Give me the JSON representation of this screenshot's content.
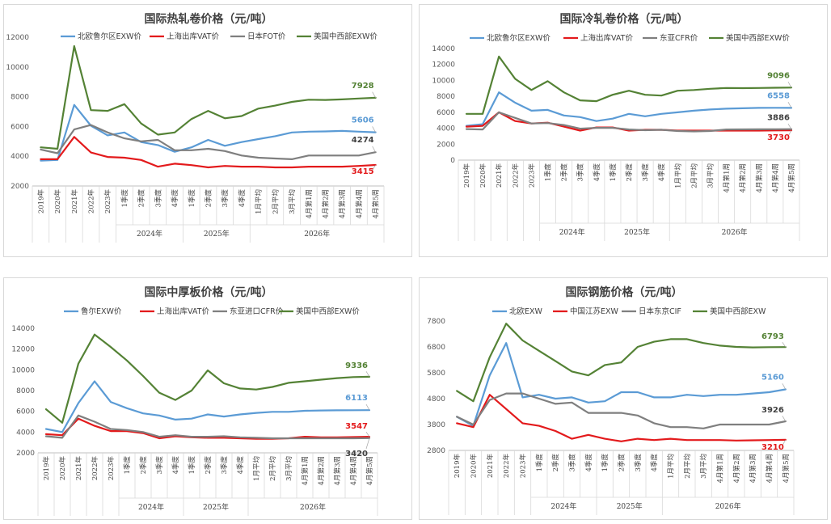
{
  "chart_data": [
    {
      "type": "line",
      "title": "国际热轧卷价格（元/吨）",
      "categories": [
        "2019年",
        "2020年",
        "2021年",
        "2022年",
        "2023年",
        "1季度",
        "2季度",
        "3季度",
        "4季度",
        "1季度",
        "2季度",
        "3季度",
        "4季度",
        "1月平均",
        "2月平均",
        "3月平均",
        "4月第1周",
        "4月第2周",
        "4月第3周",
        "4月第4周",
        "4月第5周"
      ],
      "year_groups": [
        {
          "label": "2024年",
          "from": 5,
          "to": 8
        },
        {
          "label": "2025年",
          "from": 9,
          "to": 12
        },
        {
          "label": "2026年",
          "from": 13,
          "to": 20
        }
      ],
      "ylim": [
        2000,
        12000
      ],
      "yticks": [
        2000,
        4000,
        6000,
        8000,
        10000,
        12000
      ],
      "gridlines": false,
      "legend_position": "top",
      "series": [
        {
          "name": "北欧鲁尔区EXW价",
          "color": "#5b9bd5",
          "end_label": "5606",
          "values": [
            3700,
            3750,
            7450,
            6050,
            5400,
            5600,
            4950,
            4750,
            4300,
            4600,
            5100,
            4700,
            4950,
            5150,
            5350,
            5600,
            5650,
            5670,
            5700,
            5650,
            5606
          ]
        },
        {
          "name": "上海出库VAT价",
          "color": "#e31a1c",
          "end_label": "3415",
          "values": [
            3800,
            3800,
            5300,
            4250,
            3950,
            3900,
            3750,
            3300,
            3500,
            3400,
            3250,
            3350,
            3300,
            3300,
            3250,
            3250,
            3300,
            3300,
            3300,
            3350,
            3415
          ]
        },
        {
          "name": "日本FOT价",
          "color": "#7f7f7f",
          "end_label": "4274",
          "values": [
            4450,
            4200,
            5800,
            6100,
            5600,
            5200,
            5000,
            5100,
            4400,
            4400,
            4500,
            4350,
            4050,
            3900,
            3850,
            3800,
            4050,
            4050,
            4050,
            4050,
            4274
          ]
        },
        {
          "name": "美国中西部EXW价",
          "color": "#548235",
          "end_label": "7928",
          "values": [
            4600,
            4500,
            11400,
            7100,
            7050,
            7500,
            6200,
            5450,
            5600,
            6500,
            7050,
            6550,
            6700,
            7200,
            7400,
            7650,
            7800,
            7780,
            7820,
            7880,
            7928
          ]
        }
      ]
    },
    {
      "type": "line",
      "title": "国际冷轧卷价格（元/吨）",
      "categories": [
        "2019年",
        "2020年",
        "2021年",
        "2022年",
        "2023年",
        "1季度",
        "2季度",
        "3季度",
        "4季度",
        "1季度",
        "2季度",
        "3季度",
        "4季度",
        "1月平均",
        "2月平均",
        "3月平均",
        "4月第1周",
        "4月第2周",
        "4月第3周",
        "4月第4周",
        "4月第5周"
      ],
      "year_groups": [
        {
          "label": "2024年",
          "from": 5,
          "to": 8
        },
        {
          "label": "2025年",
          "from": 9,
          "to": 12
        },
        {
          "label": "2026年",
          "from": 13,
          "to": 20
        }
      ],
      "ylim": [
        0,
        14000
      ],
      "yticks": [
        0,
        2000,
        4000,
        6000,
        8000,
        10000,
        12000,
        14000
      ],
      "gridlines": false,
      "legend_position": "top",
      "series": [
        {
          "name": "北欧鲁尔区EXW价",
          "color": "#5b9bd5",
          "end_label": "6558",
          "values": [
            4300,
            4500,
            8500,
            7200,
            6200,
            6300,
            5600,
            5400,
            4900,
            5200,
            5800,
            5500,
            5800,
            6000,
            6200,
            6350,
            6450,
            6500,
            6550,
            6560,
            6558
          ]
        },
        {
          "name": "上海出库VAT价",
          "color": "#e31a1c",
          "end_label": "3730",
          "values": [
            4200,
            4300,
            6000,
            4900,
            4600,
            4700,
            4200,
            3700,
            4100,
            4100,
            3700,
            3800,
            3800,
            3700,
            3700,
            3700,
            3700,
            3700,
            3700,
            3720,
            3730
          ]
        },
        {
          "name": "东亚CFR价",
          "color": "#7f7f7f",
          "end_label": "3886",
          "values": [
            3900,
            3850,
            6000,
            5300,
            4600,
            4650,
            4400,
            3950,
            4050,
            4050,
            3850,
            3750,
            3800,
            3650,
            3600,
            3650,
            3850,
            3860,
            3870,
            3880,
            3886
          ]
        },
        {
          "name": "美国中西部EXW价",
          "color": "#548235",
          "end_label": "9096",
          "values": [
            5800,
            5800,
            13000,
            10200,
            8800,
            9900,
            8500,
            7500,
            7400,
            8200,
            8700,
            8200,
            8100,
            8700,
            8800,
            8950,
            9050,
            9030,
            9050,
            9080,
            9096
          ]
        }
      ]
    },
    {
      "type": "line",
      "title": "国际中厚板价格（元/吨）",
      "categories": [
        "2019年",
        "2020年",
        "2021年",
        "2022年",
        "2023年",
        "1季度",
        "2季度",
        "3季度",
        "4季度",
        "1季度",
        "2季度",
        "3季度",
        "4季度",
        "1月平均",
        "2月平均",
        "3月平均",
        "4月第1周",
        "4月第2周",
        "4月第3周",
        "4月第4周",
        "4月第5周"
      ],
      "year_groups": [
        {
          "label": "2024年",
          "from": 5,
          "to": 8
        },
        {
          "label": "2025年",
          "from": 9,
          "to": 12
        },
        {
          "label": "2026年",
          "from": 13,
          "to": 20
        }
      ],
      "ylim": [
        2000,
        14000
      ],
      "yticks": [
        2000,
        4000,
        6000,
        8000,
        10000,
        12000,
        14000
      ],
      "gridlines": false,
      "legend_position": "top",
      "series": [
        {
          "name": "鲁尔EXW价",
          "color": "#5b9bd5",
          "end_label": "6113",
          "values": [
            4300,
            4000,
            6800,
            8900,
            6900,
            6300,
            5800,
            5600,
            5200,
            5300,
            5700,
            5500,
            5700,
            5850,
            5950,
            5950,
            6050,
            6080,
            6100,
            6110,
            6113
          ]
        },
        {
          "name": "上海出库VAT价",
          "color": "#e31a1c",
          "end_label": "3547",
          "values": [
            3800,
            3700,
            5300,
            4600,
            4100,
            4100,
            3900,
            3400,
            3600,
            3500,
            3450,
            3450,
            3400,
            3350,
            3350,
            3400,
            3550,
            3500,
            3500,
            3520,
            3547
          ]
        },
        {
          "name": "东亚进口CFR价",
          "color": "#7f7f7f",
          "end_label": "3420",
          "values": [
            3600,
            3450,
            5600,
            5000,
            4300,
            4200,
            4000,
            3550,
            3700,
            3550,
            3550,
            3600,
            3500,
            3450,
            3400,
            3400,
            3400,
            3400,
            3400,
            3400,
            3420
          ]
        },
        {
          "name": "美国中西部EXW价",
          "color": "#548235",
          "end_label": "9336",
          "values": [
            6200,
            4900,
            10600,
            13400,
            12200,
            10900,
            9400,
            7800,
            7100,
            8000,
            9950,
            8700,
            8200,
            8100,
            8350,
            8750,
            8900,
            9050,
            9200,
            9300,
            9336
          ]
        }
      ]
    },
    {
      "type": "line",
      "title": "国际钢筋价格（元/吨）",
      "categories": [
        "2019年",
        "2020年",
        "2021年",
        "2022年",
        "2023年",
        "1季度",
        "2季度",
        "3季度",
        "4季度",
        "1季度",
        "2季度",
        "3季度",
        "4季度",
        "1月平均",
        "2月平均",
        "3月平均",
        "4月第1周",
        "4月第2周",
        "4月第3周",
        "4月第4周",
        "4月第5周"
      ],
      "year_groups": [
        {
          "label": "2024年",
          "from": 5,
          "to": 8
        },
        {
          "label": "2025年",
          "from": 9,
          "to": 12
        },
        {
          "label": "2026年",
          "from": 13,
          "to": 20
        }
      ],
      "ylim": [
        2800,
        7800
      ],
      "yticks": [
        2800,
        3800,
        4800,
        5800,
        6800,
        7800
      ],
      "gridlines": false,
      "legend_position": "top",
      "series": [
        {
          "name": "北欧EXW",
          "color": "#5b9bd5",
          "end_label": "5160",
          "values": [
            4100,
            3750,
            5700,
            6950,
            4850,
            4950,
            4800,
            4850,
            4650,
            4700,
            5050,
            5050,
            4850,
            4850,
            4950,
            4900,
            4950,
            4950,
            5000,
            5050,
            5160
          ]
        },
        {
          "name": "中国江苏EXW",
          "color": "#e31a1c",
          "end_label": "3210",
          "values": [
            3850,
            3700,
            4950,
            4400,
            3850,
            3750,
            3550,
            3250,
            3400,
            3250,
            3150,
            3250,
            3200,
            3250,
            3200,
            3200,
            3200,
            3180,
            3190,
            3200,
            3210
          ]
        },
        {
          "name": "日本东京CIF",
          "color": "#7f7f7f",
          "end_label": "3926",
          "values": [
            4100,
            3800,
            4750,
            5000,
            5000,
            4800,
            4600,
            4650,
            4250,
            4250,
            4250,
            4150,
            3850,
            3700,
            3700,
            3650,
            3800,
            3800,
            3800,
            3800,
            3926
          ]
        },
        {
          "name": "美国中西部EXW",
          "color": "#548235",
          "end_label": "6793",
          "values": [
            5100,
            4700,
            6400,
            7700,
            7050,
            6650,
            6250,
            5850,
            5700,
            6100,
            6200,
            6800,
            7000,
            7100,
            7100,
            6950,
            6850,
            6800,
            6780,
            6790,
            6793
          ]
        }
      ]
    }
  ]
}
